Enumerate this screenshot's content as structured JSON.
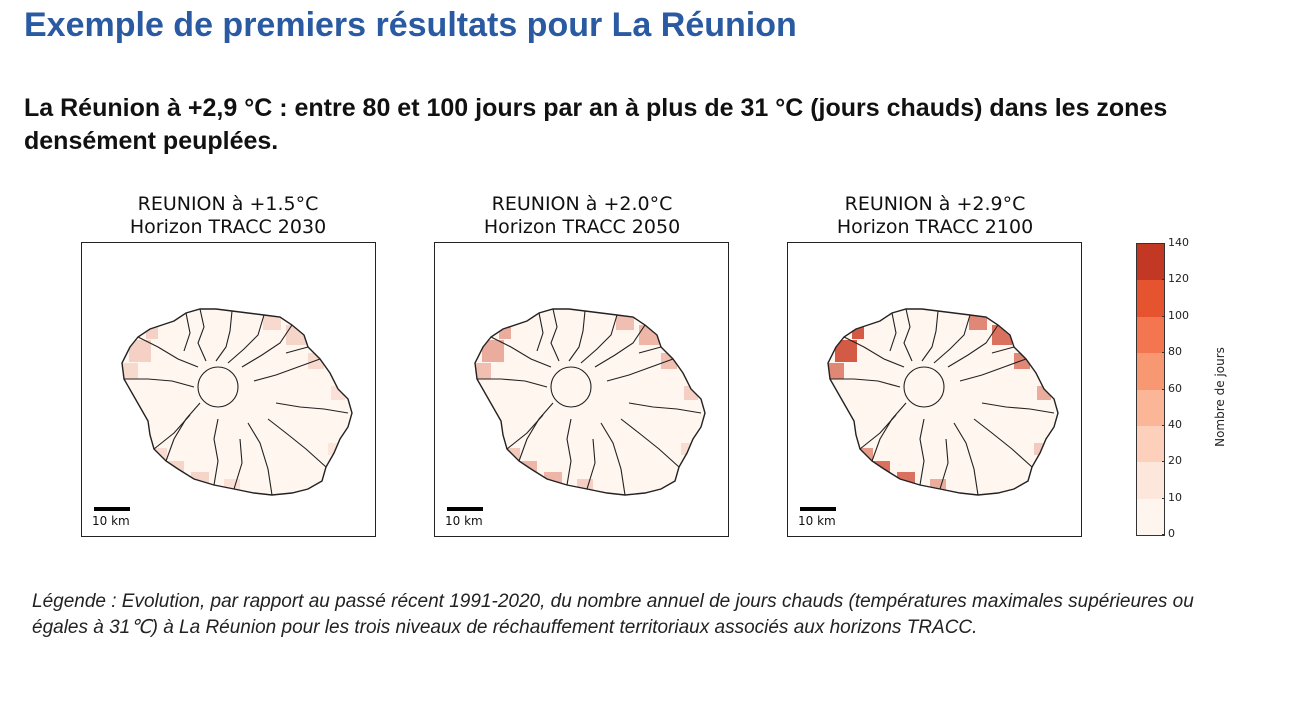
{
  "slide": {
    "title": "Exemple de premiers résultats pour La Réunion",
    "subtitle": "La Réunion à +2,9 °C : entre 80 et 100 jours par an à plus de 31 °C (jours chauds) dans les zones densément peuplées.",
    "caption": "Légende : Evolution, par rapport au passé récent 1991-2020, du nombre annuel de jours chauds (températures maximales supérieures ou égales à 31℃) à La Réunion pour les trois niveaux de réchauffement territoriaux associés aux horizons TRACC."
  },
  "maps": [
    {
      "title_line1": "REUNION à +1.5°C",
      "title_line2": "Horizon TRACC 2030",
      "scale_label": "10 km",
      "intensity_level": 0.35
    },
    {
      "title_line1": "REUNION à +2.0°C",
      "title_line2": "Horizon TRACC 2050",
      "scale_label": "10 km",
      "intensity_level": 0.6
    },
    {
      "title_line1": "REUNION à +2.9°C",
      "title_line2": "Horizon TRACC 2100",
      "scale_label": "10 km",
      "intensity_level": 1.0
    }
  ],
  "colorbar": {
    "label": "Nombre de jours",
    "ticks": [
      "0",
      "10",
      "20",
      "40",
      "60",
      "80",
      "100",
      "120",
      "140"
    ],
    "colors": [
      "#fff5ef",
      "#fde6db",
      "#fcd0ba",
      "#fbb597",
      "#f89872",
      "#f47650",
      "#e5532f",
      "#c23824",
      "#7a1712"
    ]
  }
}
